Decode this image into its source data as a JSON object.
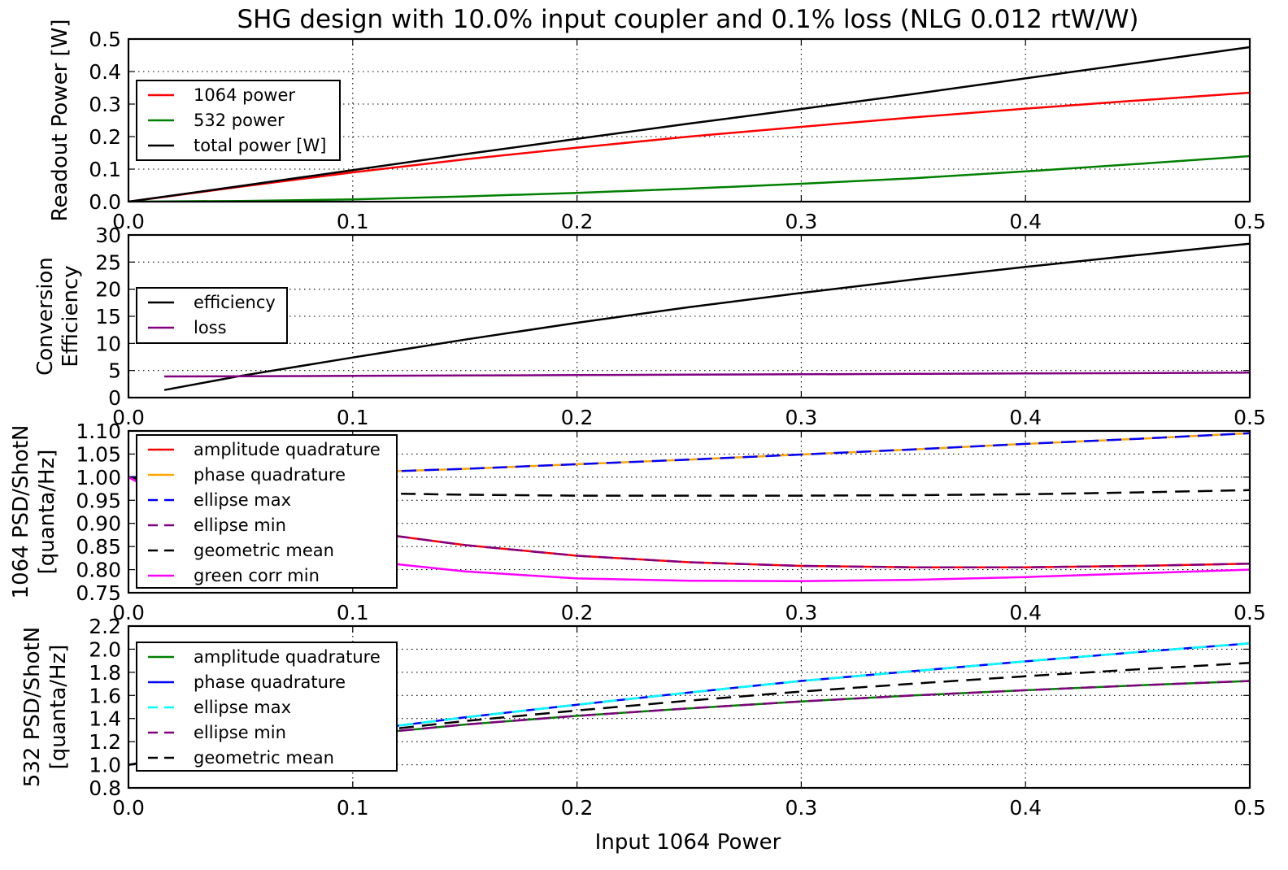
{
  "title": "SHG design with 10.0% input coupler and 0.1% loss (NLG 0.012 rtW/W)",
  "xlabel": "Input 1064 Power",
  "chart_data": [
    {
      "type": "line",
      "ylabel": [
        "Readout Power [W]"
      ],
      "xlim": [
        0.0,
        0.5
      ],
      "ylim": [
        0.0,
        0.5
      ],
      "xticks": [
        "0.0",
        "0.1",
        "0.2",
        "0.3",
        "0.4",
        "0.5"
      ],
      "yticks": [
        "0.0",
        "0.1",
        "0.2",
        "0.3",
        "0.4",
        "0.5"
      ],
      "grid": true,
      "legend_position": "left",
      "x": [
        0.0,
        0.05,
        0.1,
        0.15,
        0.2,
        0.25,
        0.3,
        0.35,
        0.4,
        0.45,
        0.5
      ],
      "series": [
        {
          "name": "1064 power",
          "color": "#ff0000",
          "dash": "solid",
          "values": [
            0.0,
            0.046,
            0.09,
            0.13,
            0.166,
            0.2,
            0.23,
            0.259,
            0.286,
            0.311,
            0.335
          ]
        },
        {
          "name": "532 power",
          "color": "#008000",
          "dash": "solid",
          "values": [
            0.0,
            0.002,
            0.007,
            0.016,
            0.027,
            0.04,
            0.055,
            0.072,
            0.093,
            0.116,
            0.14
          ]
        },
        {
          "name": "total power [W]",
          "color": "#000000",
          "dash": "solid",
          "values": [
            0.0,
            0.048,
            0.097,
            0.146,
            0.193,
            0.24,
            0.285,
            0.331,
            0.379,
            0.427,
            0.475
          ]
        }
      ]
    },
    {
      "type": "line",
      "ylabel": [
        "Conversion",
        "Efficiency"
      ],
      "xlim": [
        0.0,
        0.5
      ],
      "ylim": [
        0,
        30
      ],
      "xticks": [
        "0.0",
        "0.1",
        "0.2",
        "0.3",
        "0.4",
        "0.5"
      ],
      "yticks": [
        "0",
        "5",
        "10",
        "15",
        "20",
        "25",
        "30"
      ],
      "grid": true,
      "legend_position": "upper left",
      "x": [
        0.016,
        0.05,
        0.1,
        0.15,
        0.2,
        0.25,
        0.3,
        0.35,
        0.4,
        0.45,
        0.5
      ],
      "series": [
        {
          "name": "efficiency",
          "color": "#000000",
          "dash": "solid",
          "values": [
            1.4,
            4.0,
            7.4,
            10.7,
            13.8,
            16.7,
            19.3,
            21.8,
            24.1,
            26.3,
            28.4
          ]
        },
        {
          "name": "loss",
          "color": "#800080",
          "dash": "solid",
          "values": [
            3.9,
            3.95,
            4.0,
            4.08,
            4.15,
            4.23,
            4.3,
            4.38,
            4.45,
            4.52,
            4.6
          ]
        }
      ]
    },
    {
      "type": "line",
      "ylabel": [
        "1064 PSD/ShotN",
        "[quanta/Hz]"
      ],
      "xlim": [
        0.0,
        0.5
      ],
      "ylim": [
        0.75,
        1.1
      ],
      "xticks": [
        "0.0",
        "0.1",
        "0.2",
        "0.3",
        "0.4",
        "0.5"
      ],
      "yticks": [
        "0.75",
        "0.80",
        "0.85",
        "0.90",
        "0.95",
        "1.00",
        "1.05",
        "1.10"
      ],
      "grid": true,
      "legend_position": "left",
      "x": [
        0.0,
        0.05,
        0.1,
        0.15,
        0.2,
        0.25,
        0.3,
        0.35,
        0.4,
        0.45,
        0.5
      ],
      "series": [
        {
          "name": "amplitude quadrature",
          "color": "#ff0000",
          "dash": "solid",
          "values": [
            1.0,
            0.93,
            0.885,
            0.853,
            0.83,
            0.816,
            0.808,
            0.805,
            0.805,
            0.808,
            0.813
          ]
        },
        {
          "name": "phase quadrature",
          "color": "#ffa500",
          "dash": "solid",
          "values": [
            1.0,
            1.003,
            1.01,
            1.018,
            1.028,
            1.038,
            1.049,
            1.06,
            1.072,
            1.083,
            1.095
          ]
        },
        {
          "name": "ellipse max",
          "color": "#0000ff",
          "dash": "dashed",
          "values": [
            1.0,
            1.003,
            1.01,
            1.018,
            1.028,
            1.038,
            1.049,
            1.06,
            1.072,
            1.083,
            1.095
          ]
        },
        {
          "name": "ellipse min",
          "color": "#800080",
          "dash": "dashed",
          "values": [
            1.0,
            0.93,
            0.885,
            0.853,
            0.83,
            0.816,
            0.808,
            0.805,
            0.805,
            0.808,
            0.813
          ]
        },
        {
          "name": "geometric mean",
          "color": "#000000",
          "dash": "dashed",
          "values": [
            1.0,
            0.975,
            0.966,
            0.962,
            0.96,
            0.96,
            0.96,
            0.961,
            0.963,
            0.967,
            0.972
          ]
        },
        {
          "name": "green corr min",
          "color": "#ff00ff",
          "dash": "solid",
          "values": [
            1.0,
            0.87,
            0.822,
            0.796,
            0.781,
            0.776,
            0.775,
            0.778,
            0.784,
            0.792,
            0.8
          ]
        }
      ]
    },
    {
      "type": "line",
      "ylabel": [
        "532  PSD/ShotN",
        "[quanta/Hz]"
      ],
      "xlim": [
        0.0,
        0.5
      ],
      "ylim": [
        0.8,
        2.2
      ],
      "xticks": [
        "0.0",
        "0.1",
        "0.2",
        "0.3",
        "0.4",
        "0.5"
      ],
      "yticks": [
        "0.8",
        "1.0",
        "1.2",
        "1.4",
        "1.6",
        "1.8",
        "2.0",
        "2.2"
      ],
      "grid": true,
      "legend_position": "left",
      "x": [
        0.0,
        0.05,
        0.1,
        0.15,
        0.2,
        0.25,
        0.3,
        0.35,
        0.4,
        0.45,
        0.5
      ],
      "series": [
        {
          "name": "amplitude quadrature",
          "color": "#008000",
          "dash": "solid",
          "values": [
            1.0,
            1.14,
            1.255,
            1.348,
            1.423,
            1.488,
            1.548,
            1.6,
            1.645,
            1.687,
            1.725
          ]
        },
        {
          "name": "phase quadrature",
          "color": "#0000ff",
          "dash": "solid",
          "values": [
            1.0,
            1.16,
            1.29,
            1.41,
            1.52,
            1.625,
            1.725,
            1.81,
            1.895,
            1.975,
            2.05
          ]
        },
        {
          "name": "ellipse max",
          "color": "#00ffff",
          "dash": "dashed",
          "values": [
            1.0,
            1.16,
            1.29,
            1.41,
            1.52,
            1.625,
            1.725,
            1.81,
            1.895,
            1.975,
            2.05
          ]
        },
        {
          "name": "ellipse min",
          "color": "#800080",
          "dash": "dashed",
          "values": [
            1.0,
            1.14,
            1.255,
            1.348,
            1.423,
            1.488,
            1.548,
            1.6,
            1.645,
            1.687,
            1.725
          ]
        },
        {
          "name": "geometric mean",
          "color": "#000000",
          "dash": "dashed",
          "values": [
            1.0,
            1.15,
            1.272,
            1.378,
            1.47,
            1.555,
            1.634,
            1.702,
            1.766,
            1.826,
            1.881
          ]
        }
      ]
    }
  ]
}
